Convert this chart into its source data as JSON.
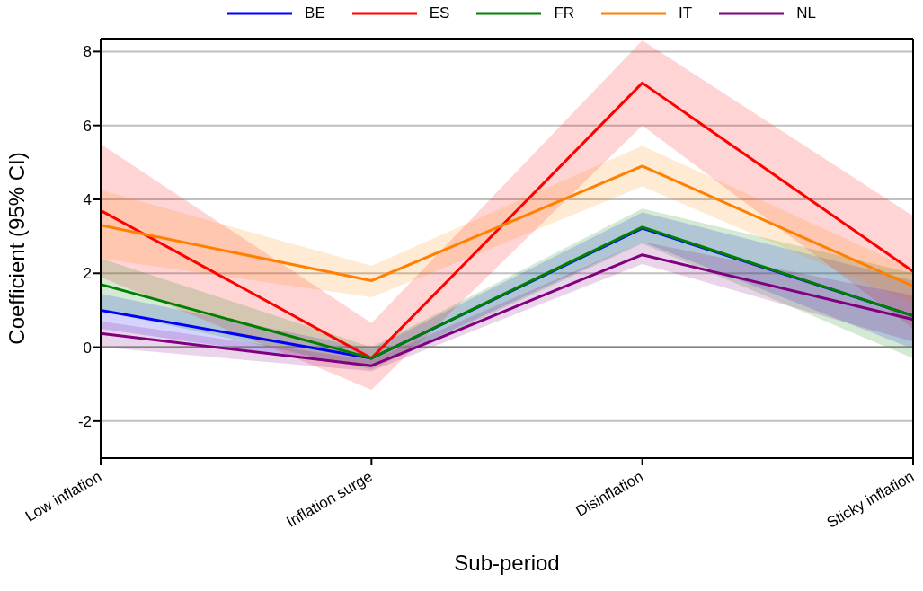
{
  "chart_data": {
    "type": "line",
    "xlabel": "Sub-period",
    "ylabel": "Coefficient (95% CI)",
    "categories": [
      "Low inflation",
      "Inflation surge",
      "Disinflation",
      "Sticky inflation"
    ],
    "ylim": [
      -3,
      8.35
    ],
    "yticks": [
      -2,
      0,
      2,
      4,
      6,
      8
    ],
    "grid": "y",
    "legend": "top",
    "marker": "none",
    "line_style": "solid",
    "ref_lines": [
      {
        "axis": "y",
        "value": 0,
        "color": "#808080"
      }
    ],
    "series": [
      {
        "name": "BE",
        "color": "#0000ff",
        "values": [
          1.0,
          -0.3,
          3.22,
          0.85
        ],
        "lower": [
          0.5,
          -0.55,
          2.85,
          -0.05
        ],
        "upper": [
          1.45,
          -0.05,
          3.65,
          1.8
        ]
      },
      {
        "name": "ES",
        "color": "#ff0000",
        "values": [
          3.7,
          -0.3,
          7.15,
          2.05
        ],
        "lower": [
          1.9,
          -1.15,
          6.0,
          0.5
        ],
        "upper": [
          5.5,
          0.65,
          8.3,
          3.55
        ]
      },
      {
        "name": "FR",
        "color": "#008000",
        "values": [
          1.7,
          -0.3,
          3.25,
          0.85
        ],
        "lower": [
          1.0,
          -0.6,
          2.8,
          -0.3
        ],
        "upper": [
          2.4,
          0.0,
          3.75,
          2.0
        ]
      },
      {
        "name": "IT",
        "color": "#ff8000",
        "values": [
          3.3,
          1.8,
          4.9,
          1.65
        ],
        "lower": [
          2.4,
          1.35,
          4.35,
          1.2
        ],
        "upper": [
          4.25,
          2.2,
          5.45,
          2.1
        ]
      },
      {
        "name": "NL",
        "color": "#800080",
        "values": [
          0.37,
          -0.5,
          2.5,
          0.75
        ],
        "lower": [
          0.0,
          -0.65,
          2.25,
          0.15
        ],
        "upper": [
          0.7,
          -0.35,
          2.85,
          1.4
        ]
      }
    ]
  }
}
